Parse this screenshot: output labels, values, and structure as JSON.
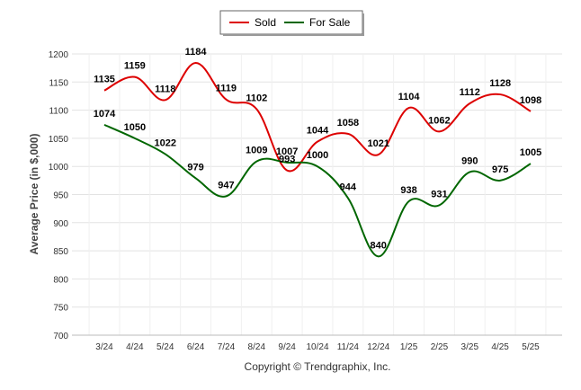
{
  "chart_data": {
    "type": "line",
    "title": "",
    "xlabel": "",
    "ylabel": "Average Price (in $,000)",
    "ylim": [
      700,
      1200
    ],
    "yticks": [
      700,
      750,
      800,
      850,
      900,
      950,
      1000,
      1050,
      1100,
      1150,
      1200
    ],
    "grid": true,
    "legend_position": "top-center",
    "categories": [
      "3/24",
      "4/24",
      "5/24",
      "6/24",
      "7/24",
      "8/24",
      "9/24",
      "10/24",
      "11/24",
      "12/24",
      "1/25",
      "2/25",
      "3/25",
      "4/25",
      "5/25"
    ],
    "series": [
      {
        "name": "Sold",
        "color": "#dd0000",
        "values": [
          1135,
          1159,
          1118,
          1184,
          1119,
          1102,
          993,
          1044,
          1058,
          1021,
          1104,
          1062,
          1112,
          1128,
          1098
        ]
      },
      {
        "name": "For Sale",
        "color": "#006600",
        "values": [
          1074,
          1050,
          1022,
          979,
          947,
          1009,
          1007,
          1000,
          944,
          840,
          938,
          931,
          990,
          975,
          1005
        ]
      }
    ]
  },
  "footer": {
    "copyright": "Copyright © Trendgraphix, Inc."
  }
}
